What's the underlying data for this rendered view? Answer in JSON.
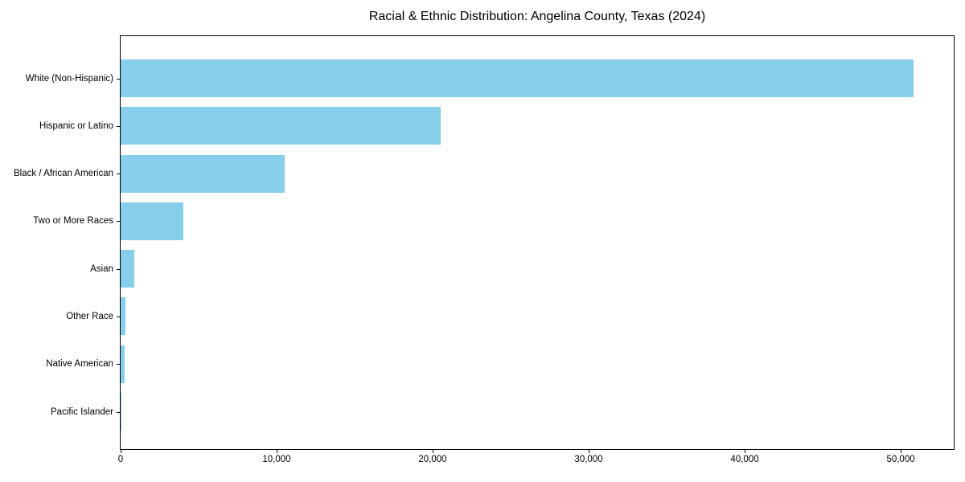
{
  "page": {
    "background": "#ffffff"
  },
  "chart_data": {
    "type": "bar",
    "orientation": "horizontal",
    "title": "Racial & Ethnic Distribution: Angelina County, Texas (2024)",
    "categories": [
      "White (Non-Hispanic)",
      "Hispanic or Latino",
      "Black / African American",
      "Two or More Races",
      "Asian",
      "Other Race",
      "Native American",
      "Pacific Islander"
    ],
    "values": [
      50800,
      20500,
      10500,
      4000,
      900,
      300,
      250,
      40
    ],
    "bar_color": "#87CEEB",
    "axis_color": "#000000",
    "text_color": "#000000",
    "xlabel": "",
    "ylabel": "",
    "xlim": [
      0,
      53400
    ],
    "x_ticks": [
      0,
      10000,
      20000,
      30000,
      40000,
      50000
    ],
    "x_tick_labels": [
      "0",
      "10,000",
      "20,000",
      "30,000",
      "40,000",
      "50,000"
    ],
    "grid": false,
    "legend_position": "none"
  }
}
